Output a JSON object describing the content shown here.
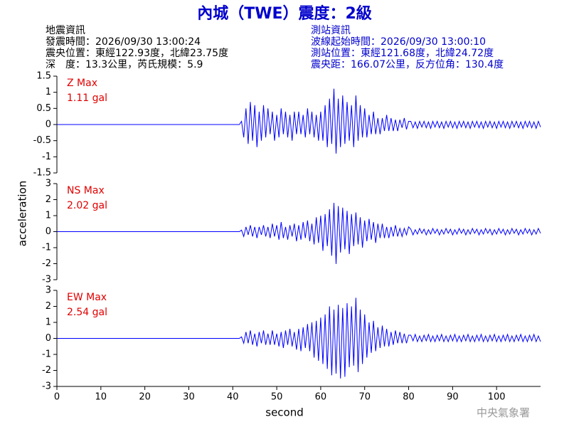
{
  "header": {
    "title": "內城（TWE）震度：2級",
    "left": [
      "地震資訊",
      "發震時間：2026/09/30 13:00:24",
      "震央位置：東經122.93度，北緯23.75度",
      "深　度：13.3公里，芮氏規模：5.9"
    ],
    "right": [
      "測站資訊",
      "波線起始時間：2026/09/30 13:00:10",
      "測站位置：東經121.68度，北緯24.72度",
      "震央距：166.07公里，反方位角：130.4度"
    ],
    "footer": "中央氣象署"
  },
  "chart_data": [
    {
      "type": "line",
      "annotation": [
        "Z Max",
        "1.11 gal"
      ],
      "ylim": [
        -1.5,
        1.5
      ],
      "yticks": [
        1.5,
        1,
        0.5,
        0,
        -0.5,
        -1,
        -1.5
      ],
      "xlim": [
        0,
        110
      ],
      "series": [
        {
          "color": "#0000ff",
          "x": [
            0,
            41.5,
            42,
            42.5,
            43,
            43.5,
            44,
            44.5,
            45,
            45.5,
            46,
            46.5,
            47,
            47.5,
            48,
            48.5,
            49,
            49.5,
            50,
            50.5,
            51,
            51.5,
            52,
            52.5,
            53,
            53.5,
            54,
            54.5,
            55,
            55.5,
            56,
            56.5,
            57,
            57.5,
            58,
            58.5,
            59,
            59.5,
            60,
            60.5,
            61,
            61.5,
            62,
            62.5,
            63,
            63.5,
            64,
            64.5,
            65,
            65.5,
            66,
            66.5,
            67,
            67.5,
            68,
            68.5,
            69,
            69.5,
            70,
            70.5,
            71,
            71.5,
            72,
            72.5,
            73,
            73.5,
            74,
            74.5,
            75,
            75.5,
            76,
            76.5,
            77,
            77.5,
            78,
            78.5,
            79,
            79.5,
            80,
            80.5,
            81,
            81.5,
            82,
            82.5,
            83,
            83.5,
            84,
            84.5,
            85,
            85.5,
            86,
            86.5,
            87,
            87.5,
            88,
            88.5,
            89,
            89.5,
            90,
            90.5,
            91,
            91.5,
            92,
            92.5,
            93,
            93.5,
            94,
            94.5,
            95,
            95.5,
            96,
            96.5,
            97,
            97.5,
            98,
            98.5,
            99,
            99.5,
            100,
            100.5,
            101,
            101.5,
            102,
            102.5,
            103,
            103.5,
            104,
            104.5,
            105,
            105.5,
            106,
            106.5,
            107,
            107.5,
            108,
            108.5,
            109,
            109.5,
            110
          ],
          "values": [
            0,
            0,
            0.1,
            -0.4,
            0.5,
            -0.6,
            0.7,
            -0.5,
            0.6,
            -0.7,
            0.4,
            -0.5,
            0.6,
            -0.4,
            0.5,
            -0.3,
            0.4,
            -0.5,
            0.3,
            -0.4,
            0.5,
            -0.3,
            0.4,
            -0.4,
            0.3,
            -0.5,
            0.4,
            -0.3,
            0.4,
            -0.3,
            0.3,
            -0.4,
            0.5,
            -0.3,
            0.4,
            -0.4,
            0.3,
            -0.5,
            0.4,
            -0.5,
            0.6,
            -0.7,
            0.8,
            -0.6,
            1.11,
            -0.9,
            0.8,
            -0.7,
            0.9,
            -0.6,
            0.7,
            -0.5,
            0.6,
            -0.7,
            0.9,
            -0.5,
            0.6,
            -0.4,
            0.5,
            -0.4,
            0.3,
            -0.3,
            0.4,
            -0.3,
            0.2,
            -0.3,
            0.2,
            -0.2,
            0.3,
            -0.2,
            0.2,
            -0.2,
            0.15,
            -0.2,
            0.15,
            -0.1,
            0.2,
            -0.15,
            0.1,
            0.1,
            -0.1,
            0.08,
            -0.12,
            0.1,
            -0.08,
            0.1,
            -0.1,
            0.08,
            -0.12,
            0.1,
            -0.08,
            0.1,
            -0.1,
            0.08,
            -0.12,
            0.1,
            -0.08,
            0.1,
            -0.1,
            0.08,
            -0.12,
            0.1,
            -0.08,
            0.1,
            -0.1,
            0.08,
            -0.12,
            0.1,
            -0.08,
            0.1,
            -0.1,
            0.08,
            -0.12,
            0.1,
            -0.08,
            0.1,
            -0.1,
            0.08,
            -0.12,
            0.1,
            -0.08,
            0.1,
            -0.1,
            0.08,
            -0.12,
            0.1,
            -0.08,
            0.1,
            -0.1,
            0.08,
            -0.12,
            0.1,
            -0.08,
            0.1,
            -0.1,
            0.08,
            -0.12,
            0.1,
            -0.08
          ]
        }
      ]
    },
    {
      "type": "line",
      "annotation": [
        "NS Max",
        "2.02 gal"
      ],
      "ylabel": "acceleration",
      "ylim": [
        -3,
        3
      ],
      "yticks": [
        3,
        2,
        1,
        0,
        -1,
        -2,
        -3
      ],
      "xlim": [
        0,
        110
      ],
      "series": [
        {
          "color": "#0000ff",
          "x": [
            0,
            41.5,
            42,
            42.5,
            43,
            43.5,
            44,
            44.5,
            45,
            45.5,
            46,
            46.5,
            47,
            47.5,
            48,
            48.5,
            49,
            49.5,
            50,
            50.5,
            51,
            51.5,
            52,
            52.5,
            53,
            53.5,
            54,
            54.5,
            55,
            55.5,
            56,
            56.5,
            57,
            57.5,
            58,
            58.5,
            59,
            59.5,
            60,
            60.5,
            61,
            61.5,
            62,
            62.5,
            63,
            63.5,
            64,
            64.5,
            65,
            65.5,
            66,
            66.5,
            67,
            67.5,
            68,
            68.5,
            69,
            69.5,
            70,
            70.5,
            71,
            71.5,
            72,
            72.5,
            73,
            73.5,
            74,
            74.5,
            75,
            75.5,
            76,
            76.5,
            77,
            77.5,
            78,
            78.5,
            79,
            79.5,
            80,
            80.5,
            81,
            81.5,
            82,
            82.5,
            83,
            83.5,
            84,
            84.5,
            85,
            85.5,
            86,
            86.5,
            87,
            87.5,
            88,
            88.5,
            89,
            89.5,
            90,
            90.5,
            91,
            91.5,
            92,
            92.5,
            93,
            93.5,
            94,
            94.5,
            95,
            95.5,
            96,
            96.5,
            97,
            97.5,
            98,
            98.5,
            99,
            99.5,
            100,
            100.5,
            101,
            101.5,
            102,
            102.5,
            103,
            103.5,
            104,
            104.5,
            105,
            105.5,
            106,
            106.5,
            107,
            107.5,
            108,
            108.5,
            109,
            109.5,
            110
          ],
          "values": [
            0,
            0,
            0.1,
            -0.3,
            0.3,
            -0.2,
            0.4,
            -0.3,
            0.3,
            -0.4,
            0.3,
            -0.2,
            0.4,
            -0.3,
            0.3,
            -0.4,
            0.5,
            -0.3,
            0.4,
            -0.5,
            0.6,
            -0.4,
            0.3,
            -0.5,
            0.4,
            -0.3,
            0.5,
            -0.6,
            0.4,
            -0.5,
            0.6,
            -0.4,
            0.7,
            -0.6,
            0.5,
            -0.8,
            0.9,
            -0.7,
            1.0,
            -1.2,
            1.1,
            -0.9,
            1.4,
            -1.5,
            1.8,
            -2.02,
            1.6,
            -1.3,
            1.5,
            -1.1,
            1.3,
            -1.4,
            1.1,
            -0.9,
            1.2,
            -0.8,
            0.9,
            -1.0,
            0.7,
            -0.6,
            0.8,
            -0.5,
            0.6,
            -0.7,
            0.5,
            -0.4,
            0.5,
            -0.4,
            0.3,
            -0.4,
            0.3,
            -0.3,
            0.4,
            -0.3,
            0.2,
            -0.3,
            0.2,
            -0.2,
            0.3,
            0.15,
            -0.2,
            0.12,
            -0.15,
            0.2,
            -0.1,
            0.15,
            -0.2,
            0.12,
            -0.15,
            0.2,
            -0.1,
            0.15,
            -0.2,
            0.12,
            -0.15,
            0.2,
            -0.1,
            0.15,
            -0.2,
            0.12,
            -0.15,
            0.2,
            -0.1,
            0.15,
            -0.2,
            0.12,
            -0.15,
            0.2,
            -0.1,
            0.15,
            -0.2,
            0.12,
            -0.15,
            0.2,
            -0.1,
            0.15,
            -0.2,
            0.12,
            -0.15,
            0.2,
            -0.1,
            0.15,
            -0.2,
            0.12,
            -0.15,
            0.2,
            -0.1,
            0.15,
            -0.2,
            0.12,
            -0.15,
            0.2,
            -0.1,
            0.15,
            -0.2,
            0.12,
            -0.15,
            0.2,
            -0.1
          ]
        }
      ]
    },
    {
      "type": "line",
      "annotation": [
        "EW Max",
        "2.54 gal"
      ],
      "xlabel": "second",
      "ylim": [
        -3,
        3
      ],
      "yticks": [
        3,
        2,
        1,
        0,
        -1,
        -2,
        -3
      ],
      "xlim": [
        0,
        110
      ],
      "xticks": [
        0,
        10,
        20,
        30,
        40,
        50,
        60,
        70,
        80,
        90,
        100
      ],
      "series": [
        {
          "color": "#0000ff",
          "x": [
            0,
            41.5,
            42,
            42.5,
            43,
            43.5,
            44,
            44.5,
            45,
            45.5,
            46,
            46.5,
            47,
            47.5,
            48,
            48.5,
            49,
            49.5,
            50,
            50.5,
            51,
            51.5,
            52,
            52.5,
            53,
            53.5,
            54,
            54.5,
            55,
            55.5,
            56,
            56.5,
            57,
            57.5,
            58,
            58.5,
            59,
            59.5,
            60,
            60.5,
            61,
            61.5,
            62,
            62.5,
            63,
            63.5,
            64,
            64.5,
            65,
            65.5,
            66,
            66.5,
            67,
            67.5,
            68,
            68.5,
            69,
            69.5,
            70,
            70.5,
            71,
            71.5,
            72,
            72.5,
            73,
            73.5,
            74,
            74.5,
            75,
            75.5,
            76,
            76.5,
            77,
            77.5,
            78,
            78.5,
            79,
            79.5,
            80,
            80.5,
            81,
            81.5,
            82,
            82.5,
            83,
            83.5,
            84,
            84.5,
            85,
            85.5,
            86,
            86.5,
            87,
            87.5,
            88,
            88.5,
            89,
            89.5,
            90,
            90.5,
            91,
            91.5,
            92,
            92.5,
            93,
            93.5,
            94,
            94.5,
            95,
            95.5,
            96,
            96.5,
            97,
            97.5,
            98,
            98.5,
            99,
            99.5,
            100,
            100.5,
            101,
            101.5,
            102,
            102.5,
            103,
            103.5,
            104,
            104.5,
            105,
            105.5,
            106,
            106.5,
            107,
            107.5,
            108,
            108.5,
            109,
            109.5,
            110
          ],
          "values": [
            0,
            0,
            0.1,
            -0.3,
            0.4,
            -0.3,
            0.5,
            -0.4,
            0.3,
            -0.5,
            0.4,
            -0.3,
            0.5,
            -0.4,
            0.3,
            -0.4,
            0.5,
            -0.4,
            0.3,
            -0.5,
            0.4,
            -0.6,
            0.5,
            -0.4,
            0.6,
            -0.5,
            0.4,
            -0.7,
            0.6,
            -0.8,
            0.7,
            -0.6,
            0.9,
            -0.8,
            1.0,
            -1.2,
            1.1,
            -1.4,
            1.3,
            -1.6,
            1.5,
            -1.9,
            2.0,
            -2.3,
            1.8,
            -2.2,
            2.1,
            -2.5,
            1.9,
            -2.4,
            2.2,
            -1.8,
            2.0,
            -1.7,
            2.54,
            -2.1,
            1.8,
            -1.6,
            1.5,
            -1.2,
            1.0,
            -0.9,
            1.1,
            -0.8,
            0.7,
            -0.6,
            0.8,
            -0.5,
            0.6,
            -0.5,
            0.4,
            -0.4,
            0.5,
            -0.3,
            0.4,
            -0.3,
            0.3,
            -0.3,
            0.2,
            0.2,
            -0.15,
            0.25,
            -0.2,
            0.15,
            -0.2,
            0.2,
            -0.15,
            0.25,
            -0.2,
            0.15,
            -0.2,
            0.2,
            -0.15,
            0.25,
            -0.2,
            0.15,
            -0.2,
            0.2,
            -0.15,
            0.25,
            -0.2,
            0.15,
            -0.2,
            0.2,
            -0.15,
            0.25,
            -0.2,
            0.15,
            -0.2,
            0.2,
            -0.15,
            0.25,
            -0.2,
            0.15,
            -0.2,
            0.2,
            -0.15,
            0.25,
            -0.2,
            0.15,
            -0.2,
            0.2,
            -0.15,
            0.25,
            -0.2,
            0.15,
            -0.2,
            0.2,
            -0.15,
            0.25,
            -0.2,
            0.15,
            -0.2,
            0.2,
            -0.15,
            0.25,
            -0.2,
            0.15,
            -0.2
          ]
        }
      ]
    }
  ]
}
